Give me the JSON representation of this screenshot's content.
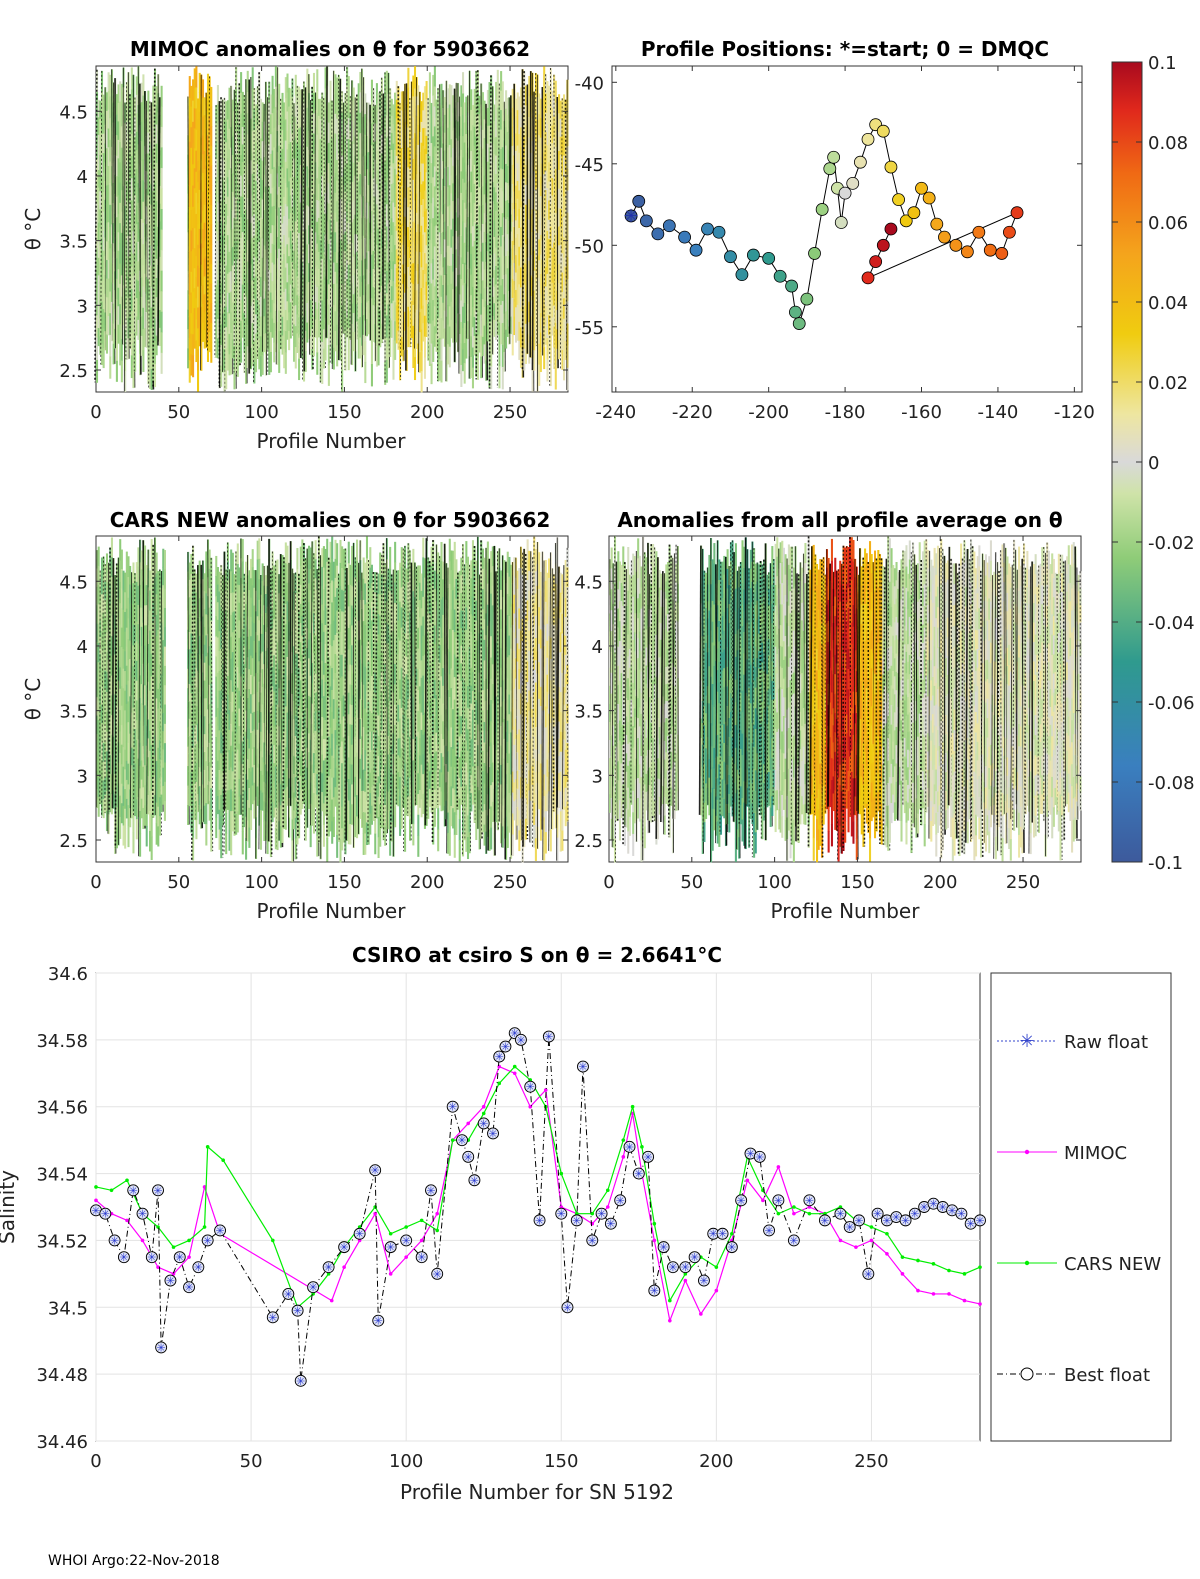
{
  "footer": "WHOI Argo:22-Nov-2018",
  "panels": {
    "mimoc": {
      "title": "MIMOC anomalies on θ  for 5903662",
      "xlabel": "Profile Number",
      "ylabel": "θ °C",
      "xlim": [
        0,
        285
      ],
      "ylim": [
        2.33,
        4.85
      ],
      "xticks": [
        "0",
        "50",
        "100",
        "150",
        "200",
        "250"
      ],
      "yticks": [
        "2.5",
        "3",
        "3.5",
        "4",
        "4.5"
      ]
    },
    "positions": {
      "title": "Profile Positions: *=start; 0 = DMQC",
      "xlim": [
        -241,
        -118
      ],
      "ylim": [
        -59,
        -39
      ],
      "xticks": [
        "-240",
        "-220",
        "-200",
        "-180",
        "-160",
        "-140",
        "-120"
      ],
      "yticks": [
        "-40",
        "-45",
        "-50",
        "-55"
      ]
    },
    "cars": {
      "title": "CARS NEW anomalies on θ for 5903662",
      "xlabel": "Profile Number",
      "ylabel": "θ °C",
      "xticks": [
        "0",
        "50",
        "100",
        "150",
        "200",
        "250"
      ],
      "yticks": [
        "2.5",
        "3",
        "3.5",
        "4",
        "4.5"
      ]
    },
    "allavg": {
      "title": "Anomalies from all profile average on θ",
      "xlabel": "Profile Number",
      "xticks": [
        "0",
        "50",
        "100",
        "150",
        "200",
        "250"
      ],
      "yticks": [
        "2.5",
        "3",
        "3.5",
        "4",
        "4.5"
      ]
    },
    "colorbar": {
      "range": [
        -0.1,
        0.1
      ],
      "ticks": [
        "0.1",
        "0.08",
        "0.06",
        "0.04",
        "0.02",
        "0",
        "-0.02",
        "-0.04",
        "-0.06",
        "-0.08",
        "-0.1"
      ]
    }
  },
  "chart_data": [
    {
      "type": "line",
      "title": "CSIRO at csiro S on θ = 2.6641°C",
      "xlabel": "Profile Number for SN 5192",
      "ylabel": "Salinity",
      "xlim": [
        0,
        285
      ],
      "ylim": [
        34.46,
        34.6
      ],
      "xticks": [
        "0",
        "50",
        "100",
        "150",
        "200",
        "250"
      ],
      "yticks": [
        "34.46",
        "34.48",
        "34.5",
        "34.52",
        "34.54",
        "34.56",
        "34.58",
        "34.6"
      ],
      "legend": [
        "Raw float",
        "MIMOC",
        "CARS NEW",
        "Best float"
      ],
      "series": [
        {
          "name": "MIMOC",
          "color": "#ff00ff",
          "x": [
            0,
            5,
            10,
            15,
            20,
            25,
            30,
            35,
            40,
            76,
            80,
            85,
            90,
            95,
            100,
            105,
            110,
            115,
            120,
            125,
            130,
            135,
            140,
            145,
            150,
            155,
            160,
            165,
            170,
            173,
            176,
            180,
            185,
            190,
            195,
            200,
            205,
            210,
            215,
            220,
            225,
            230,
            235,
            240,
            245,
            250,
            255,
            260,
            265,
            270,
            275,
            280,
            285
          ],
          "y": [
            34.532,
            34.528,
            34.526,
            34.52,
            34.512,
            34.51,
            34.515,
            34.536,
            34.522,
            34.502,
            34.512,
            34.52,
            34.528,
            34.51,
            34.515,
            34.52,
            34.528,
            34.55,
            34.555,
            34.56,
            34.572,
            34.57,
            34.56,
            34.565,
            34.53,
            34.528,
            34.525,
            34.53,
            34.545,
            34.558,
            34.54,
            34.52,
            34.496,
            34.508,
            34.498,
            34.505,
            34.52,
            34.538,
            34.532,
            34.542,
            34.528,
            34.53,
            34.528,
            34.52,
            34.518,
            34.52,
            34.516,
            34.51,
            34.505,
            34.504,
            34.504,
            34.502,
            34.501
          ]
        },
        {
          "name": "CARS NEW",
          "color": "#00ee00",
          "x": [
            0,
            5,
            10,
            15,
            20,
            25,
            30,
            35,
            36,
            41,
            57,
            65,
            70,
            75,
            80,
            85,
            90,
            95,
            100,
            105,
            110,
            115,
            120,
            125,
            130,
            135,
            140,
            145,
            150,
            155,
            160,
            165,
            170,
            173,
            176,
            180,
            185,
            190,
            195,
            200,
            205,
            210,
            215,
            220,
            225,
            230,
            235,
            240,
            245,
            250,
            255,
            260,
            265,
            270,
            275,
            280,
            285
          ],
          "y": [
            34.536,
            34.535,
            34.538,
            34.528,
            34.524,
            34.518,
            34.52,
            34.524,
            34.548,
            34.544,
            34.52,
            34.5,
            34.504,
            34.51,
            34.518,
            34.524,
            34.53,
            34.522,
            34.524,
            34.526,
            34.523,
            34.55,
            34.55,
            34.558,
            34.567,
            34.572,
            34.568,
            34.56,
            34.54,
            34.528,
            34.528,
            34.535,
            34.55,
            34.56,
            34.548,
            34.525,
            34.502,
            34.51,
            34.515,
            34.512,
            34.522,
            34.545,
            34.535,
            34.528,
            34.53,
            34.528,
            34.528,
            34.53,
            34.526,
            34.524,
            34.522,
            34.515,
            34.514,
            34.513,
            34.511,
            34.51,
            34.512
          ]
        },
        {
          "name": "Best float",
          "color": "#000000",
          "x": [
            0,
            3,
            6,
            9,
            12,
            15,
            18,
            20,
            21,
            24,
            27,
            30,
            33,
            36,
            40,
            57,
            62,
            65,
            66,
            70,
            75,
            80,
            85,
            90,
            91,
            95,
            100,
            105,
            108,
            110,
            115,
            118,
            120,
            122,
            125,
            128,
            130,
            132,
            135,
            137,
            140,
            143,
            146,
            150,
            152,
            155,
            157,
            160,
            163,
            166,
            169,
            172,
            175,
            178,
            180,
            183,
            186,
            190,
            193,
            196,
            199,
            202,
            205,
            208,
            211,
            214,
            217,
            220,
            225,
            230,
            235,
            240,
            243,
            246,
            249,
            252,
            255,
            258,
            261,
            264,
            267,
            270,
            273,
            276,
            279,
            282,
            285
          ],
          "y": [
            34.529,
            34.528,
            34.52,
            34.515,
            34.535,
            34.528,
            34.515,
            34.535,
            34.488,
            34.508,
            34.515,
            34.506,
            34.512,
            34.52,
            34.523,
            34.497,
            34.504,
            34.499,
            34.478,
            34.506,
            34.512,
            34.518,
            34.522,
            34.541,
            34.496,
            34.518,
            34.52,
            34.515,
            34.535,
            34.51,
            34.56,
            34.55,
            34.545,
            34.538,
            34.555,
            34.552,
            34.575,
            34.578,
            34.582,
            34.58,
            34.566,
            34.526,
            34.581,
            34.528,
            34.5,
            34.526,
            34.572,
            34.52,
            34.528,
            34.525,
            34.532,
            34.548,
            34.54,
            34.545,
            34.505,
            34.518,
            34.512,
            34.512,
            34.515,
            34.508,
            34.522,
            34.522,
            34.518,
            34.532,
            34.546,
            34.545,
            34.523,
            34.532,
            34.52,
            34.532,
            34.526,
            34.528,
            34.524,
            34.526,
            34.51,
            34.528,
            34.526,
            34.527,
            34.526,
            34.528,
            34.53,
            34.531,
            34.53,
            34.529,
            34.528,
            34.525,
            34.526
          ]
        }
      ]
    },
    {
      "type": "scatter",
      "title": "Profile Positions: *=start; 0 = DMQC",
      "xlabel": "",
      "ylabel": "",
      "xlim": [
        -241,
        -118
      ],
      "ylim": [
        -59,
        -39
      ],
      "start": [
        -236,
        -48.2
      ],
      "x": [
        -236,
        -234,
        -232,
        -229,
        -226,
        -222,
        -219,
        -216,
        -213,
        -210,
        -207,
        -204,
        -200,
        -197,
        -194,
        -193,
        -192,
        -190,
        -188,
        -186,
        -184,
        -183,
        -182,
        -181,
        -180,
        -178,
        -176,
        -174,
        -172,
        -170,
        -168,
        -166,
        -164,
        -162,
        -160,
        -158,
        -156,
        -154,
        -151,
        -148,
        -145,
        -142,
        -139,
        -137,
        -135,
        -174,
        -172,
        -170,
        -168
      ],
      "y": [
        -48.2,
        -47.3,
        -48.5,
        -49.3,
        -48.8,
        -49.5,
        -50.3,
        -49.0,
        -49.2,
        -50.7,
        -51.8,
        -50.6,
        -50.8,
        -51.9,
        -52.5,
        -54.1,
        -54.8,
        -53.3,
        -50.5,
        -47.8,
        -45.3,
        -44.6,
        -46.5,
        -48.6,
        -46.8,
        -46.2,
        -44.9,
        -43.5,
        -42.6,
        -43.0,
        -45.2,
        -47.2,
        -48.5,
        -48.0,
        -46.5,
        -47.1,
        -48.7,
        -49.5,
        -50.0,
        -50.4,
        -49.2,
        -50.3,
        -50.5,
        -49.2,
        -48.0,
        -52.0,
        -51.0,
        -50.0,
        -49.0
      ]
    }
  ]
}
